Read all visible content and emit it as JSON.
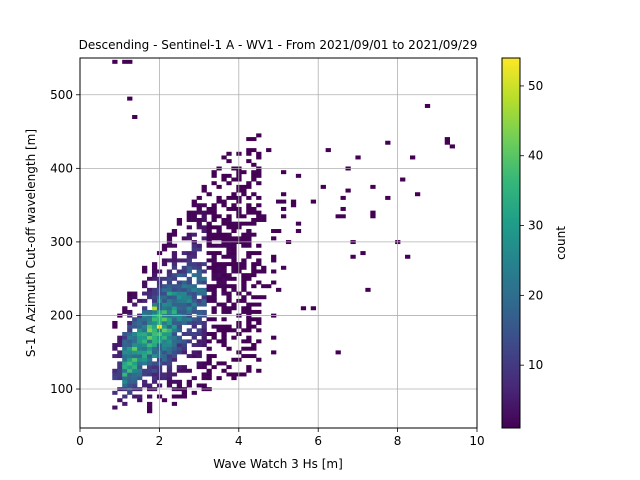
{
  "chart_data": {
    "type": "heatmap",
    "title": "Descending - Sentinel-1 A - WV1 - From 2021/09/01 to 2021/09/29",
    "xlabel": "Wave Watch 3 Hs [m]",
    "ylabel": "S-1 A Azimuth Cut-off wavelength [m]",
    "xlim": [
      0,
      10
    ],
    "ylim": [
      47,
      550
    ],
    "xticks": [
      0,
      2,
      4,
      6,
      8,
      10
    ],
    "yticks": [
      100,
      200,
      300,
      400,
      500
    ],
    "grid": true,
    "bin_width_x": 0.125,
    "bin_width_y": 5,
    "colorbar": {
      "label": "count",
      "min": 1,
      "max": 54,
      "ticks": [
        10,
        20,
        30,
        40,
        50
      ],
      "colormap": [
        "#440154",
        "#482878",
        "#3e4989",
        "#31688e",
        "#26828e",
        "#1f9e89",
        "#35b779",
        "#6ece58",
        "#b5de2b",
        "#fde725"
      ]
    },
    "density_model": {
      "description": "approximate 2D histogram of Hs vs azimuth cut-off wavelength",
      "core": {
        "x_range": [
          0.85,
          4.6
        ],
        "y_center_at_x": [
          [
            1.0,
            130
          ],
          [
            2.0,
            185
          ],
          [
            3.0,
            235
          ],
          [
            4.0,
            280
          ],
          [
            5.0,
            310
          ],
          [
            6.0,
            335
          ],
          [
            7.0,
            355
          ],
          [
            8.0,
            375
          ]
        ]
      },
      "peak": {
        "x": 2.0,
        "y": 187,
        "count": 54
      },
      "hot_cells": [
        {
          "x": 2.0,
          "y": 187,
          "count": 54
        },
        {
          "x": 1.9,
          "y": 212,
          "count": 48
        },
        {
          "x": 1.8,
          "y": 178,
          "count": 44
        },
        {
          "x": 1.7,
          "y": 185,
          "count": 40
        },
        {
          "x": 2.1,
          "y": 203,
          "count": 38
        },
        {
          "x": 1.6,
          "y": 165,
          "count": 36
        },
        {
          "x": 2.3,
          "y": 228,
          "count": 32
        },
        {
          "x": 1.5,
          "y": 150,
          "count": 30
        }
      ],
      "sparse_points": [
        [
          0.85,
          545
        ],
        [
          1.15,
          545
        ],
        [
          1.25,
          545
        ],
        [
          1.2,
          497
        ],
        [
          1.4,
          470
        ],
        [
          4.5,
          422
        ],
        [
          8.8,
          484
        ],
        [
          7.75,
          436
        ],
        [
          8.4,
          415
        ],
        [
          9.2,
          438
        ],
        [
          9.4,
          428
        ],
        [
          7.0,
          415
        ],
        [
          6.25,
          425
        ],
        [
          6.8,
          400
        ],
        [
          7.4,
          375
        ]
      ]
    }
  }
}
